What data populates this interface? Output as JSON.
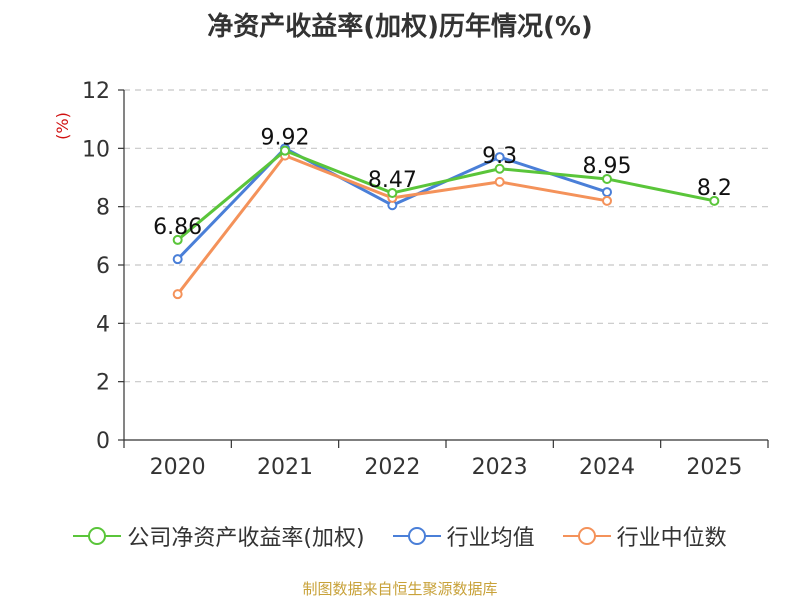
{
  "chart_data": {
    "type": "line",
    "title": "净资产收益率(加权)历年情况(%)",
    "ylabel": "(%)",
    "ylim": [
      0,
      12
    ],
    "yticks": [
      0,
      2,
      4,
      6,
      8,
      10,
      12
    ],
    "categories": [
      "2020",
      "2021",
      "2022",
      "2023",
      "2024",
      "2025"
    ],
    "grid": true,
    "legend_position": "bottom",
    "series": [
      {
        "name": "公司净资产收益率(加权)",
        "color": "#5ac53a",
        "values": [
          6.86,
          9.92,
          8.47,
          9.3,
          8.95,
          8.2
        ],
        "labels": [
          "6.86",
          "9.92",
          "8.47",
          "9.3",
          "8.95",
          "8.2"
        ]
      },
      {
        "name": "行业均值",
        "color": "#4a7fd8",
        "values": [
          6.2,
          10.0,
          8.05,
          9.7,
          8.5,
          null
        ]
      },
      {
        "name": "行业中位数",
        "color": "#f4925a",
        "values": [
          5.0,
          9.75,
          8.3,
          8.85,
          8.2,
          null
        ]
      }
    ]
  },
  "footer": {
    "source": "制图数据来自恒生聚源数据库"
  }
}
